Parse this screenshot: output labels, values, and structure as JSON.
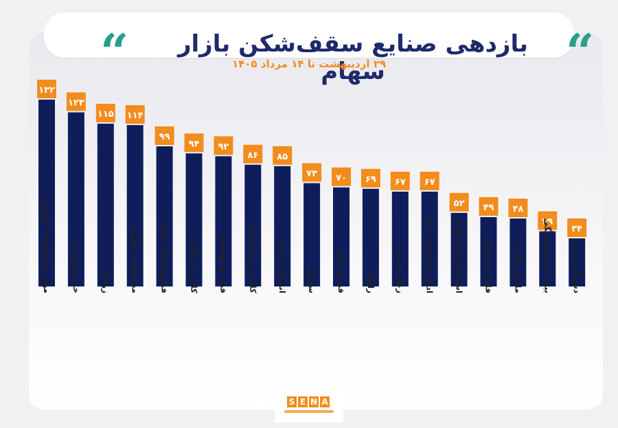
{
  "header": {
    "title": "بازدهی صنایع سقف‌شکن بازار سهام",
    "subtitle": "۲۹ اردیبهشت تا ۱۴ مرداد ۱۴۰۵",
    "quote_mark": "“"
  },
  "logo": {
    "letters": [
      "S",
      "E",
      "N",
      "A"
    ]
  },
  "colors": {
    "bar": "#0f1e5a",
    "label_bg": "#f28c1c",
    "label_text": "#ffffff",
    "title": "#1f2a6b",
    "accent": "#2a9d8f"
  },
  "chart_data": {
    "type": "bar",
    "categories": [
      "مواد و محصولات دارویی",
      "خرده فروشی",
      "زراعت",
      "محصولات غذایی",
      "فرآورده‌های نفتی",
      "کانی غیرفلزی",
      "فنی و مهندسی",
      "کاشی و سرامیک",
      "انتشار و چاپ",
      "سیمان",
      "قند و شکر",
      "رایانه",
      "زغال سنگ",
      "اداره بازارهای مالی",
      "استخراج کانه فلزی",
      "فلزات اساسی",
      "ماشین آلات",
      "بیمه و بازنشستگی",
      "دستگاه برقی"
    ],
    "values": [
      132,
      123,
      115,
      114,
      99,
      94,
      92,
      86,
      85,
      73,
      70,
      69,
      67,
      67,
      52,
      49,
      48,
      39,
      34
    ],
    "value_labels": [
      "۱۳۲",
      "۱۲۳",
      "۱۱۵",
      "۱۱۴",
      "۹۹",
      "۹۴",
      "۹۲",
      "۸۶",
      "۸۵",
      "۷۳",
      "۷۰",
      "۶۹",
      "۶۷",
      "۶۷",
      "۵۲",
      "۴۹",
      "۴۸",
      "۳۹",
      "۳۴"
    ],
    "ylim": [
      0,
      132
    ],
    "grid": false,
    "legend": "none"
  }
}
